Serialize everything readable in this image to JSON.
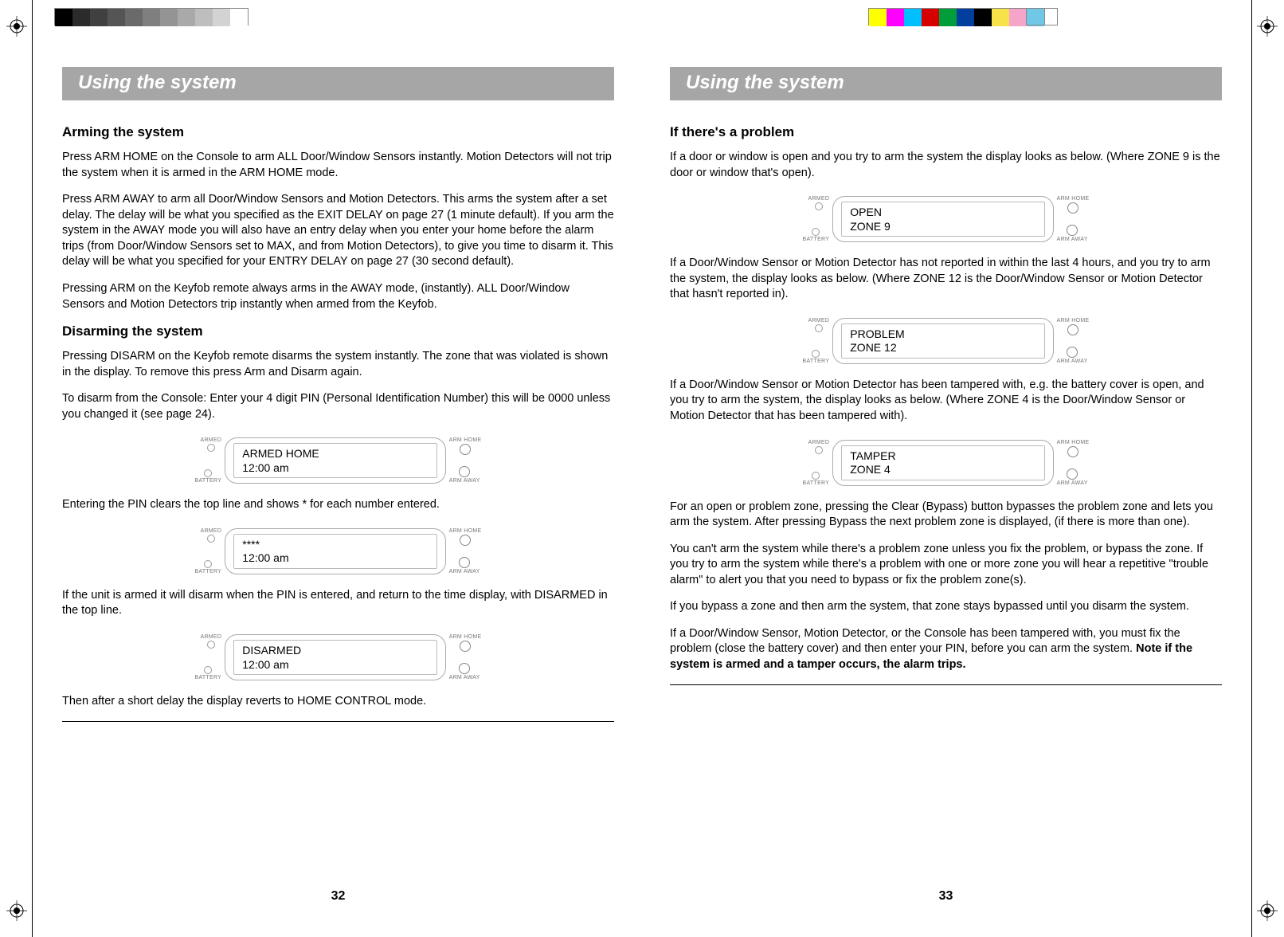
{
  "swatches_left": [
    "#000000",
    "#2b2b2b",
    "#404040",
    "#555555",
    "#6a6a6a",
    "#7f7f7f",
    "#949494",
    "#a9a9a9",
    "#bebebe",
    "#d3d3d3",
    "#ffffff"
  ],
  "swatches_right": [
    "#ffff00",
    "#ff00ff",
    "#00bfff",
    "#d60000",
    "#009e3a",
    "#003f9e",
    "#000000",
    "#f7e24a",
    "#f5a6c8",
    "#6ec8e6"
  ],
  "left_page": {
    "header": "Using the system",
    "h1": "Arming the system",
    "p1": "Press ARM HOME on the Console to arm ALL Door/Window Sensors instantly. Motion Detectors will not trip the system when it is armed in the ARM HOME mode.",
    "p2": "Press ARM AWAY to arm all Door/Window Sensors and Motion Detectors. This arms the system after a set delay. The delay will be what you specified as the EXIT DELAY on page 27 (1 minute default). If you arm the system in the AWAY mode you will also have an entry delay when you enter your home before the alarm trips (from Door/Window Sensors set to MAX, and from Motion Detectors), to give you time to disarm it. This delay will be what you specified for your ENTRY DELAY on page 27 (30 second default).",
    "p3": "Pressing ARM on the Keyfob remote always arms in the AWAY mode, (instantly). ALL Door/Window Sensors and Motion Detectors trip instantly when armed from the Keyfob.",
    "h2": "Disarming the system",
    "p4": "Pressing DISARM on the Keyfob remote disarms the system instantly. The zone that was violated is shown in the display. To remove this press Arm and Disarm again.",
    "p5": "To disarm from the Console: Enter your 4 digit PIN (Personal Identification Number) this will be 0000 unless you changed it (see page 24).",
    "lcd1_line1": "ARMED HOME",
    "lcd1_line2": "12:00 am",
    "p6": "Entering the PIN clears the top line and shows * for each number entered.",
    "lcd2_line1": "****",
    "lcd2_line2": "12:00 am",
    "p7": "If the unit is armed it will disarm when the PIN is entered, and return to the time display, with DISARMED in the top line.",
    "lcd3_line1": "DISARMED",
    "lcd3_line2": "12:00 am",
    "p8": "Then after a short delay the display reverts to HOME CONTROL mode.",
    "page_num": "32"
  },
  "right_page": {
    "header": "Using the system",
    "h1": "If there's a problem",
    "p1": "If a door or window is open and you try to arm the system the display looks as below. (Where ZONE 9 is the door or window that's open).",
    "lcd1_line1": "OPEN",
    "lcd1_line2": "ZONE 9",
    "p2": "If a Door/Window Sensor or Motion Detector has not reported in within the last 4 hours, and you try to arm the system, the display looks as below. (Where ZONE 12 is the Door/Window Sensor or Motion Detector that hasn't reported in).",
    "lcd2_line1": "PROBLEM",
    "lcd2_line2": "ZONE 12",
    "p3": "If a Door/Window Sensor or Motion Detector has been tampered with, e.g. the battery cover is open, and you try to arm the system, the display looks as below. (Where ZONE 4 is the Door/Window Sensor or Motion Detector that has been tampered with).",
    "lcd3_line1": "TAMPER",
    "lcd3_line2": "ZONE 4",
    "p4": "For an open or problem zone, pressing the Clear (Bypass) button bypasses the problem zone and lets you arm the system. After pressing Bypass the next problem zone is displayed, (if there is more than one).",
    "p5": "You can't arm the system while there's a problem zone unless you fix the problem, or bypass the zone. If you try to arm the system while there's a problem with one or more zone you will hear a repetitive \"trouble alarm\" to alert you that you need to bypass or fix the problem zone(s).",
    "p6": "If you bypass a zone and then arm the system, that zone stays bypassed until you disarm the system.",
    "p7a": "If a Door/Window Sensor, Motion Detector, or the Console has been tampered with, you must fix the problem (close the battery cover) and then enter your PIN, before you can arm the system. ",
    "p7b": "Note if the system is armed and a tamper occurs, the alarm trips.",
    "page_num": "33"
  },
  "lcd_labels": {
    "armed": "ARMED",
    "battery": "BATTERY",
    "arm_home": "ARM HOME",
    "arm_away": "ARM AWAY"
  }
}
